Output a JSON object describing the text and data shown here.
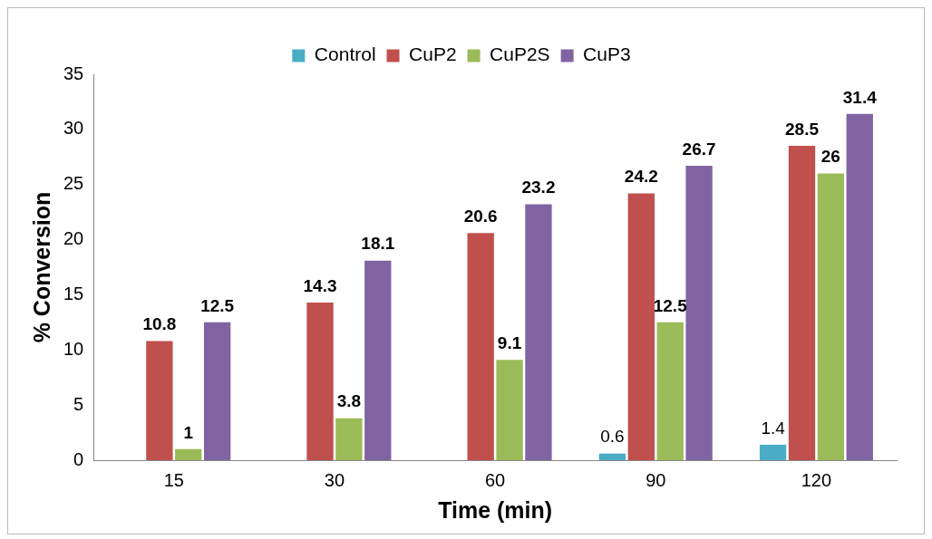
{
  "chart_data": {
    "type": "bar",
    "xlabel": "Time (min)",
    "ylabel": "% Conversion",
    "categories": [
      "15",
      "30",
      "60",
      "90",
      "120"
    ],
    "series": [
      {
        "name": "Control",
        "color": "#4bacc6",
        "values": [
          0,
          0,
          0,
          0.6,
          1.4
        ],
        "value_labels": [
          null,
          null,
          null,
          "0.6",
          "1.4"
        ]
      },
      {
        "name": "CuP2",
        "color": "#c0504d",
        "values": [
          10.8,
          14.3,
          20.6,
          24.2,
          28.5
        ],
        "value_labels": [
          "10.8",
          "14.3",
          "20.6",
          "24.2",
          "28.5"
        ]
      },
      {
        "name": "CuP2S",
        "color": "#9bbb59",
        "values": [
          1,
          3.8,
          9.1,
          12.5,
          26
        ],
        "value_labels": [
          "1",
          "3.8",
          "9.1",
          "12.5",
          "26"
        ]
      },
      {
        "name": "CuP3",
        "color": "#8064a2",
        "values": [
          12.5,
          18.1,
          23.2,
          26.7,
          31.4
        ],
        "value_labels": [
          "12.5",
          "18.1",
          "23.2",
          "26.7",
          "31.4"
        ]
      }
    ],
    "ylim": [
      0,
      35
    ],
    "yticks": [
      0,
      5,
      10,
      15,
      20,
      25,
      30,
      35
    ],
    "grid": false,
    "legend": "top"
  }
}
